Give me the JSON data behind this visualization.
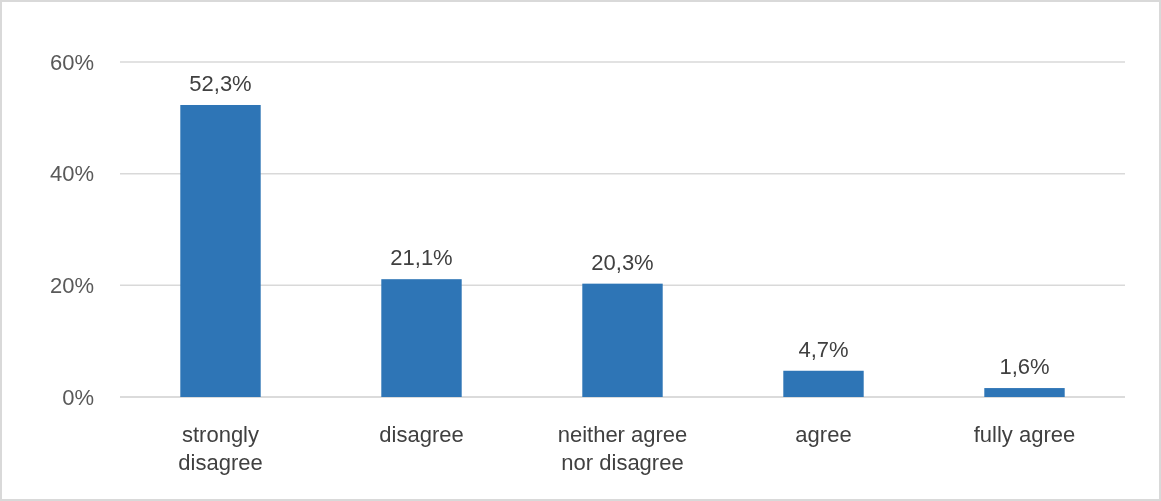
{
  "chart_data": {
    "type": "bar",
    "categories": [
      "strongly disagree",
      "disagree",
      "neither agree nor disagree",
      "agree",
      "fully agree"
    ],
    "values": [
      52.3,
      21.1,
      20.3,
      4.7,
      1.6
    ],
    "value_labels": [
      "52,3%",
      "21,1%",
      "20,3%",
      "4,7%",
      "1,6%"
    ],
    "color": "#2e75b6",
    "ylim": [
      0,
      60
    ],
    "yticks": [
      {
        "value": 0,
        "label": "0%"
      },
      {
        "value": 20,
        "label": "20%"
      },
      {
        "value": 40,
        "label": "40%"
      },
      {
        "value": 60,
        "label": "60%"
      }
    ],
    "grid": "y"
  }
}
